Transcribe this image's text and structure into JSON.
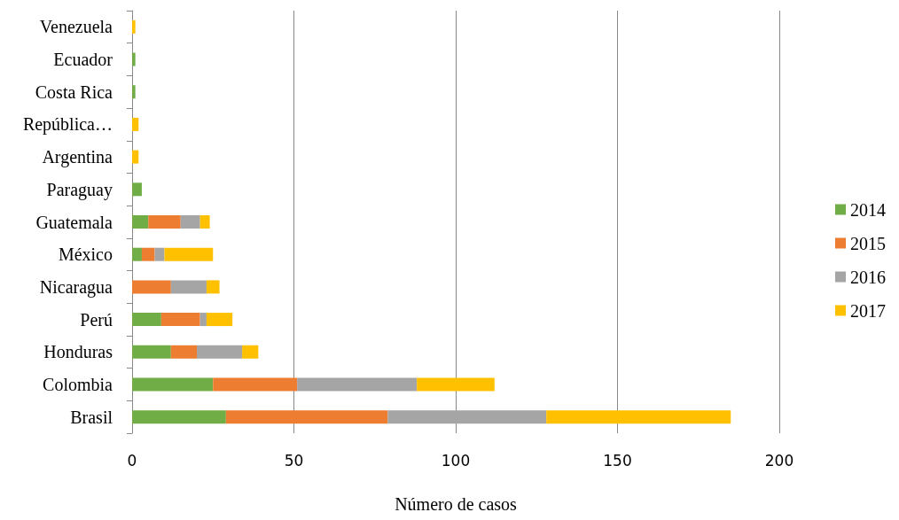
{
  "chart_data": {
    "type": "bar",
    "orientation": "horizontal",
    "stacked": true,
    "xlabel": "Número de casos",
    "categories": [
      "Venezuela",
      "Ecuador",
      "Costa Rica",
      "República…",
      "Argentina",
      "Paraguay",
      "Guatemala",
      "México",
      "Nicaragua",
      "Perú",
      "Honduras",
      "Colombia",
      "Brasil"
    ],
    "series": [
      {
        "name": "2014",
        "color": "#70ad47",
        "values": [
          null,
          1,
          1,
          null,
          null,
          3,
          5,
          3,
          null,
          9,
          12,
          25,
          29
        ]
      },
      {
        "name": "2015",
        "color": "#ed7d31",
        "values": [
          null,
          null,
          null,
          null,
          null,
          null,
          10,
          4,
          12,
          12,
          8,
          26,
          50
        ]
      },
      {
        "name": "2016",
        "color": "#a5a5a5",
        "values": [
          null,
          null,
          null,
          null,
          null,
          null,
          6,
          3,
          11,
          2,
          14,
          37,
          49
        ]
      },
      {
        "name": "2017",
        "color": "#ffc000",
        "values": [
          1,
          null,
          null,
          2,
          2,
          null,
          3,
          15,
          4,
          8,
          5,
          24,
          57
        ]
      }
    ],
    "xlim": [
      0,
      200
    ],
    "xticks": [
      0,
      50,
      100,
      150,
      200
    ],
    "grid": "x",
    "legend": "right"
  }
}
